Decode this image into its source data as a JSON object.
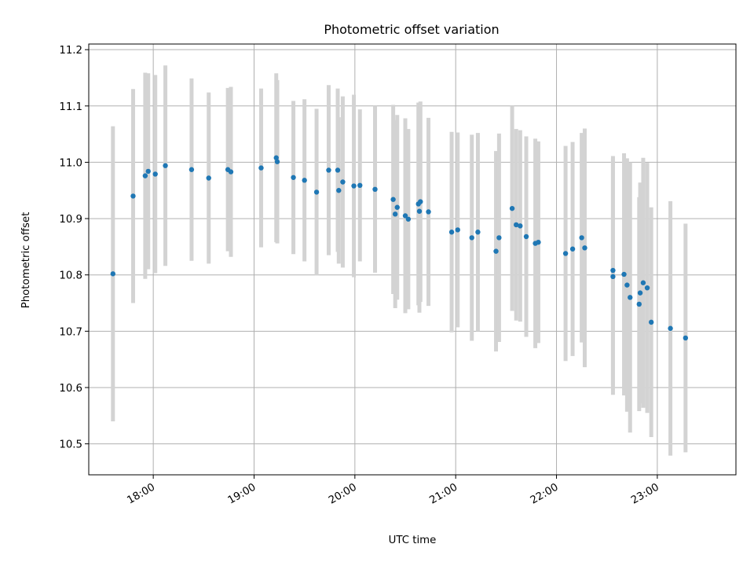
{
  "colors": {
    "point": "#1f77b4",
    "errorbar": "#d3d3d3",
    "grid": "#b0b0b0"
  },
  "chart_data": {
    "type": "scatter",
    "title": "Photometric offset variation",
    "xlabel": "UTC time",
    "ylabel": "Photometric offset",
    "grid": true,
    "xlim": [
      17.36,
      23.78
    ],
    "ylim": [
      10.445,
      11.21
    ],
    "xticks": [
      {
        "value": 18,
        "label": "18:00"
      },
      {
        "value": 19,
        "label": "19:00"
      },
      {
        "value": 20,
        "label": "20:00"
      },
      {
        "value": 21,
        "label": "21:00"
      },
      {
        "value": 22,
        "label": "22:00"
      },
      {
        "value": 23,
        "label": "23:00"
      }
    ],
    "yticks": [
      {
        "value": 10.5,
        "label": "10.5"
      },
      {
        "value": 10.6,
        "label": "10.6"
      },
      {
        "value": 10.7,
        "label": "10.7"
      },
      {
        "value": 10.8,
        "label": "10.8"
      },
      {
        "value": 10.9,
        "label": "10.9"
      },
      {
        "value": 11.0,
        "label": "11.0"
      },
      {
        "value": 11.1,
        "label": "11.1"
      },
      {
        "value": 11.2,
        "label": "11.2"
      }
    ],
    "series": [
      {
        "name": "Photometric offset",
        "x": [
          17.6,
          17.8,
          17.92,
          17.95,
          18.02,
          18.12,
          18.38,
          18.55,
          18.74,
          18.77,
          19.07,
          19.22,
          19.23,
          19.39,
          19.5,
          19.62,
          19.74,
          19.83,
          19.84,
          19.88,
          19.99,
          20.05,
          20.2,
          20.38,
          20.4,
          20.42,
          20.5,
          20.53,
          20.63,
          20.65,
          20.64,
          20.73,
          20.96,
          21.02,
          21.16,
          21.22,
          21.4,
          21.43,
          21.56,
          21.6,
          21.64,
          21.7,
          21.79,
          21.82,
          22.09,
          22.16,
          22.25,
          22.28,
          22.56,
          22.56,
          22.67,
          22.7,
          22.73,
          22.82,
          22.83,
          22.86,
          22.9,
          22.94,
          23.13,
          23.28
        ],
        "y": [
          10.802,
          10.94,
          10.976,
          10.984,
          10.979,
          10.994,
          10.987,
          10.972,
          10.987,
          10.983,
          10.99,
          11.008,
          11.001,
          10.973,
          10.968,
          10.947,
          10.986,
          10.986,
          10.95,
          10.965,
          10.958,
          10.959,
          10.952,
          10.934,
          10.908,
          10.92,
          10.905,
          10.899,
          10.926,
          10.93,
          10.913,
          10.912,
          10.876,
          10.88,
          10.866,
          10.876,
          10.842,
          10.866,
          10.918,
          10.889,
          10.887,
          10.868,
          10.856,
          10.858,
          10.838,
          10.846,
          10.866,
          10.848,
          10.808,
          10.797,
          10.801,
          10.782,
          10.76,
          10.748,
          10.768,
          10.786,
          10.777,
          10.716,
          10.705,
          10.688
        ],
        "err": [
          0.262,
          0.19,
          0.183,
          0.174,
          0.176,
          0.178,
          0.162,
          0.152,
          0.145,
          0.151,
          0.141,
          0.15,
          0.145,
          0.136,
          0.144,
          0.148,
          0.151,
          0.145,
          0.13,
          0.152,
          0.162,
          0.135,
          0.148,
          0.168,
          0.167,
          0.164,
          0.173,
          0.16,
          0.18,
          0.178,
          0.18,
          0.167,
          0.178,
          0.173,
          0.183,
          0.176,
          0.178,
          0.185,
          0.182,
          0.17,
          0.17,
          0.178,
          0.186,
          0.179,
          0.191,
          0.19,
          0.186,
          0.212,
          0.203,
          0.21,
          0.215,
          0.225,
          0.24,
          0.19,
          0.196,
          0.222,
          0.222,
          0.204,
          0.226,
          0.203
        ]
      }
    ]
  }
}
